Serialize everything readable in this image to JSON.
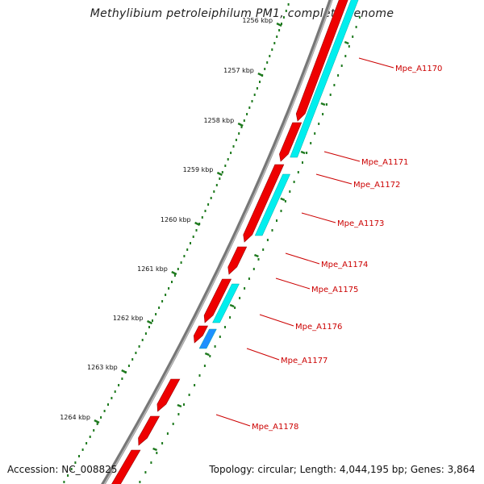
{
  "title": "Methylibium petroleiphilum PM1, complete genome",
  "accession": "Accession: NC_008825",
  "summary": "Topology: circular; Length: 4,044,195 bp; Genes: 3,864",
  "ticks": [
    "1256 kbp",
    "1257 kbp",
    "1258 kbp",
    "1259 kbp",
    "1260 kbp",
    "1261 kbp",
    "1262 kbp",
    "1263 kbp",
    "1264 kbp"
  ],
  "genes": [
    "Mpe_A1170",
    "Mpe_A1171",
    "Mpe_A1172",
    "Mpe_A1173",
    "Mpe_A1174",
    "Mpe_A1175",
    "Mpe_A1176",
    "Mpe_A1177",
    "Mpe_A1178"
  ],
  "colors": {
    "cds": "#ee0000",
    "rna": "#00eeee",
    "rna_highlight": "#1e90ff",
    "backbone": "#777777",
    "tick": "#1f7a1f",
    "label": "#cc0000"
  }
}
